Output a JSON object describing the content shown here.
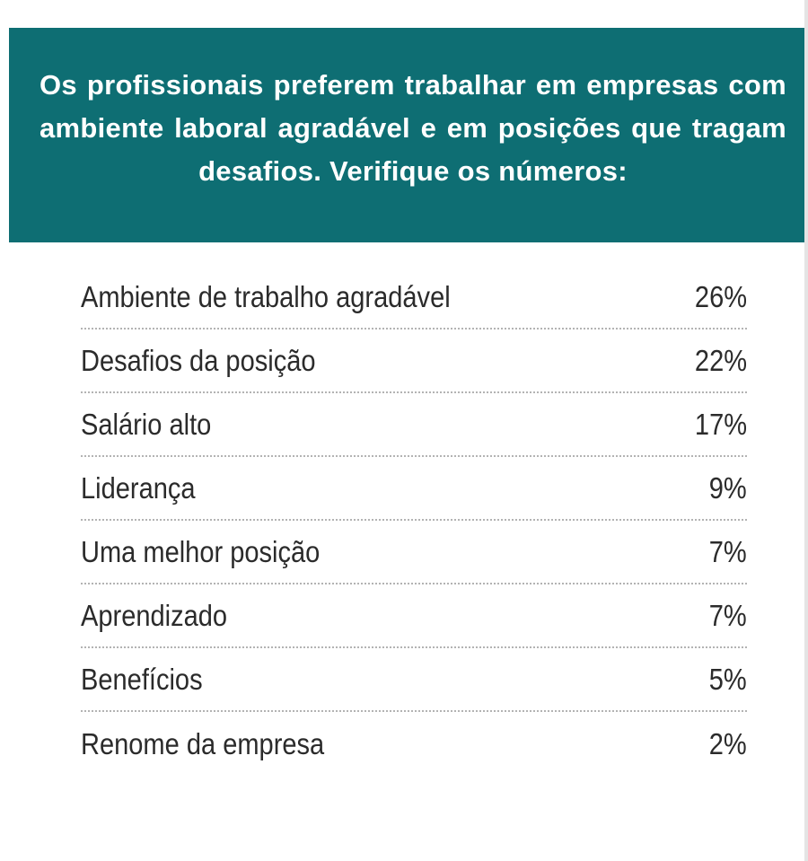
{
  "header": {
    "text": "Os profissionais preferem trabalhar em empresas com ambiente laboral agradável e em posições que tragam desafios. Verifique os números:"
  },
  "colors": {
    "banner": "#0e6e73",
    "banner_text": "#ffffff",
    "row_text": "#2b2b2b",
    "divider": "#b3b3b3"
  },
  "chart_data": {
    "type": "table",
    "title": "Os profissionais preferem trabalhar em empresas com ambiente laboral agradável e em posições que tragam desafios. Verifique os números:",
    "categories": [
      "Ambiente de trabalho agradável",
      "Desafios da posição",
      "Salário alto",
      "Liderança",
      "Uma melhor posição",
      "Aprendizado",
      "Benefícios",
      "Renome da empresa"
    ],
    "values": [
      26,
      22,
      17,
      9,
      7,
      7,
      5,
      2
    ],
    "value_labels": [
      "26%",
      "22%",
      "17%",
      "9%",
      "7%",
      "7%",
      "5%",
      "2%"
    ],
    "unit": "%"
  }
}
